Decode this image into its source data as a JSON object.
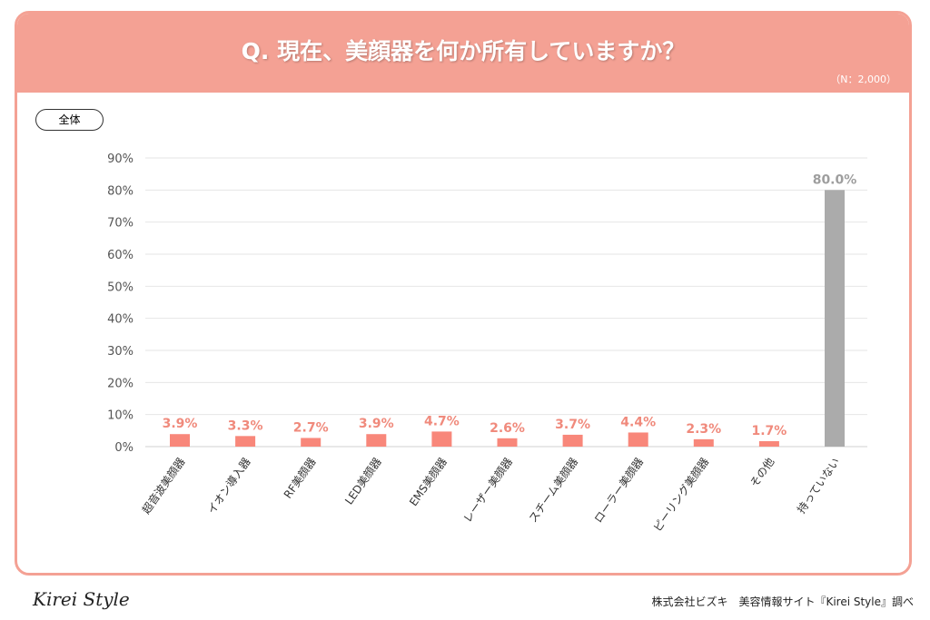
{
  "header": {
    "title": "Q. 現在、美顔器を何か所有していますか？",
    "sample": "（N：2,000）"
  },
  "segment_label": "全体",
  "footer": {
    "brand": "Kirei Style",
    "credit": "株式会社ビズキ　美容情報サイト『Kirei Style』調べ"
  },
  "colors": {
    "accent": "#f4a194",
    "bar": "#f8877a",
    "highlight_bar": "#ababab",
    "label": "#f08a7c",
    "highlight_label": "#9e9e9e"
  },
  "chart_data": {
    "type": "bar",
    "categories": [
      "超音波美顔器",
      "イオン導入器",
      "RF美顔器",
      "LED美顔器",
      "EMS美顔器",
      "レーザー美顔器",
      "スチーム美顔器",
      "ローラー美顔器",
      "ピーリング美顔器",
      "その他",
      "持っていない"
    ],
    "values": [
      3.9,
      3.3,
      2.7,
      3.9,
      4.7,
      2.6,
      3.7,
      4.4,
      2.3,
      1.7,
      80.0
    ],
    "data_labels": [
      "3.9%",
      "3.3%",
      "2.7%",
      "3.9%",
      "4.7%",
      "2.6%",
      "3.7%",
      "4.4%",
      "2.3%",
      "1.7%",
      "80.0%"
    ],
    "yticks": [
      "0%",
      "10%",
      "20%",
      "30%",
      "40%",
      "50%",
      "60%",
      "70%",
      "80%",
      "90%"
    ],
    "ylim": [
      0,
      90
    ],
    "grid": true,
    "unit": "%"
  }
}
